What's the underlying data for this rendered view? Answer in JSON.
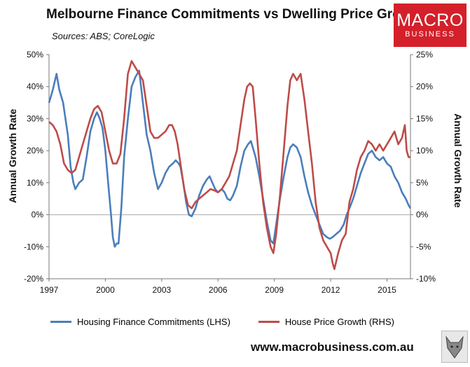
{
  "header": {
    "title": "Melbourne Finance Commitments vs Dwelling Price Growth",
    "sources": "Sources: ABS; CoreLogic"
  },
  "logo": {
    "line1": "MACRO",
    "line2": "BUSINESS"
  },
  "footer": {
    "website": "www.macrobusiness.com.au"
  },
  "colors": {
    "blue": "#4a7ebb",
    "red": "#be4b48",
    "logo_bg": "#d4202a"
  },
  "chart_data": {
    "type": "line",
    "title": "Melbourne Finance Commitments vs Dwelling Price Growth",
    "ylabel_left": "Annual Growth Rate",
    "ylabel_right": "Annual Growth Rate",
    "x_ticks": [
      "1997",
      "2000",
      "2003",
      "2006",
      "2009",
      "2012",
      "2015"
    ],
    "xlim": [
      1997,
      2016.25
    ],
    "ylim_left": [
      -20,
      50
    ],
    "ylim_right": [
      -10,
      25
    ],
    "y_ticks_left": [
      "-20%",
      "-10%",
      "0%",
      "10%",
      "20%",
      "30%",
      "40%",
      "50%"
    ],
    "y_ticks_right": [
      "-10%",
      "-5%",
      "0%",
      "5%",
      "10%",
      "15%",
      "20%",
      "25%"
    ],
    "series": [
      {
        "name": "Housing Finance Commitments (LHS)",
        "axis": "left",
        "points": [
          [
            1997.0,
            35
          ],
          [
            1997.2,
            39
          ],
          [
            1997.4,
            44
          ],
          [
            1997.55,
            39
          ],
          [
            1997.75,
            35
          ],
          [
            1998.0,
            25
          ],
          [
            1998.15,
            15
          ],
          [
            1998.3,
            10
          ],
          [
            1998.4,
            8
          ],
          [
            1998.6,
            10
          ],
          [
            1998.8,
            11
          ],
          [
            1999.0,
            18
          ],
          [
            1999.2,
            26
          ],
          [
            1999.4,
            30
          ],
          [
            1999.55,
            32
          ],
          [
            1999.7,
            30
          ],
          [
            1999.85,
            27
          ],
          [
            2000.0,
            20
          ],
          [
            2000.15,
            10
          ],
          [
            2000.3,
            0
          ],
          [
            2000.4,
            -7
          ],
          [
            2000.5,
            -10
          ],
          [
            2000.6,
            -9
          ],
          [
            2000.7,
            -9
          ],
          [
            2000.85,
            2
          ],
          [
            2001.0,
            18
          ],
          [
            2001.2,
            30
          ],
          [
            2001.4,
            40
          ],
          [
            2001.6,
            43
          ],
          [
            2001.8,
            45
          ],
          [
            2002.0,
            35
          ],
          [
            2002.2,
            25
          ],
          [
            2002.4,
            20
          ],
          [
            2002.6,
            13
          ],
          [
            2002.8,
            8
          ],
          [
            2003.0,
            10
          ],
          [
            2003.2,
            13
          ],
          [
            2003.4,
            15
          ],
          [
            2003.6,
            16
          ],
          [
            2003.75,
            17
          ],
          [
            2003.9,
            16
          ],
          [
            2004.0,
            15
          ],
          [
            2004.15,
            10
          ],
          [
            2004.3,
            4
          ],
          [
            2004.45,
            0
          ],
          [
            2004.6,
            -0.5
          ],
          [
            2004.8,
            2
          ],
          [
            2005.0,
            6
          ],
          [
            2005.2,
            9
          ],
          [
            2005.4,
            11
          ],
          [
            2005.55,
            12
          ],
          [
            2005.7,
            10
          ],
          [
            2005.85,
            8
          ],
          [
            2006.0,
            7
          ],
          [
            2006.2,
            8
          ],
          [
            2006.35,
            7
          ],
          [
            2006.5,
            5
          ],
          [
            2006.65,
            4.5
          ],
          [
            2006.8,
            6
          ],
          [
            2007.0,
            9
          ],
          [
            2007.2,
            15
          ],
          [
            2007.4,
            20
          ],
          [
            2007.6,
            22
          ],
          [
            2007.75,
            23
          ],
          [
            2007.9,
            20
          ],
          [
            2008.0,
            18
          ],
          [
            2008.2,
            12
          ],
          [
            2008.4,
            5
          ],
          [
            2008.6,
            -2
          ],
          [
            2008.8,
            -8
          ],
          [
            2008.95,
            -9
          ],
          [
            2009.1,
            -3
          ],
          [
            2009.3,
            5
          ],
          [
            2009.5,
            12
          ],
          [
            2009.7,
            18
          ],
          [
            2009.85,
            21
          ],
          [
            2010.0,
            22
          ],
          [
            2010.2,
            21
          ],
          [
            2010.4,
            18
          ],
          [
            2010.6,
            12
          ],
          [
            2010.8,
            7
          ],
          [
            2011.0,
            3
          ],
          [
            2011.2,
            0
          ],
          [
            2011.4,
            -3
          ],
          [
            2011.6,
            -6
          ],
          [
            2011.8,
            -7
          ],
          [
            2011.95,
            -7.5
          ],
          [
            2012.1,
            -7
          ],
          [
            2012.3,
            -6
          ],
          [
            2012.5,
            -5
          ],
          [
            2012.7,
            -3
          ],
          [
            2012.85,
            0
          ],
          [
            2013.0,
            2
          ],
          [
            2013.2,
            5
          ],
          [
            2013.4,
            9
          ],
          [
            2013.6,
            13
          ],
          [
            2013.8,
            16
          ],
          [
            2014.0,
            19
          ],
          [
            2014.2,
            20
          ],
          [
            2014.4,
            18
          ],
          [
            2014.6,
            17
          ],
          [
            2014.8,
            18
          ],
          [
            2015.0,
            16
          ],
          [
            2015.2,
            15
          ],
          [
            2015.4,
            12
          ],
          [
            2015.6,
            10
          ],
          [
            2015.8,
            7
          ],
          [
            2016.0,
            5
          ],
          [
            2016.15,
            3
          ],
          [
            2016.25,
            2
          ]
        ]
      },
      {
        "name": "House Price Growth (RHS)",
        "axis": "right",
        "points": [
          [
            1997.0,
            14.5
          ],
          [
            1997.2,
            14
          ],
          [
            1997.4,
            13
          ],
          [
            1997.6,
            11
          ],
          [
            1997.8,
            8
          ],
          [
            1998.0,
            7
          ],
          [
            1998.2,
            6.5
          ],
          [
            1998.4,
            7
          ],
          [
            1998.6,
            9
          ],
          [
            1998.8,
            11
          ],
          [
            1999.0,
            13
          ],
          [
            1999.2,
            15
          ],
          [
            1999.4,
            16.5
          ],
          [
            1999.6,
            17
          ],
          [
            1999.8,
            16
          ],
          [
            2000.0,
            13
          ],
          [
            2000.2,
            10
          ],
          [
            2000.4,
            8
          ],
          [
            2000.6,
            8
          ],
          [
            2000.8,
            9.5
          ],
          [
            2001.0,
            15
          ],
          [
            2001.2,
            22
          ],
          [
            2001.4,
            24
          ],
          [
            2001.6,
            23
          ],
          [
            2001.8,
            22
          ],
          [
            2002.0,
            21
          ],
          [
            2002.2,
            17
          ],
          [
            2002.4,
            13
          ],
          [
            2002.6,
            12
          ],
          [
            2002.8,
            12
          ],
          [
            2003.0,
            12.5
          ],
          [
            2003.2,
            13
          ],
          [
            2003.4,
            14
          ],
          [
            2003.55,
            14
          ],
          [
            2003.7,
            13
          ],
          [
            2003.85,
            11
          ],
          [
            2004.0,
            8
          ],
          [
            2004.2,
            4
          ],
          [
            2004.4,
            1.5
          ],
          [
            2004.6,
            1
          ],
          [
            2004.8,
            2
          ],
          [
            2005.0,
            2.5
          ],
          [
            2005.2,
            3
          ],
          [
            2005.4,
            3.5
          ],
          [
            2005.6,
            4
          ],
          [
            2005.8,
            3.8
          ],
          [
            2006.0,
            3.5
          ],
          [
            2006.2,
            4
          ],
          [
            2006.4,
            5
          ],
          [
            2006.6,
            6
          ],
          [
            2006.8,
            8
          ],
          [
            2007.0,
            10
          ],
          [
            2007.2,
            14
          ],
          [
            2007.4,
            18
          ],
          [
            2007.55,
            20
          ],
          [
            2007.7,
            20.5
          ],
          [
            2007.85,
            20
          ],
          [
            2008.0,
            15
          ],
          [
            2008.2,
            8
          ],
          [
            2008.4,
            2
          ],
          [
            2008.6,
            -2
          ],
          [
            2008.8,
            -5
          ],
          [
            2008.95,
            -6
          ],
          [
            2009.1,
            -3
          ],
          [
            2009.3,
            3
          ],
          [
            2009.5,
            10
          ],
          [
            2009.7,
            17
          ],
          [
            2009.85,
            21
          ],
          [
            2010.0,
            22
          ],
          [
            2010.2,
            21
          ],
          [
            2010.4,
            22
          ],
          [
            2010.6,
            18
          ],
          [
            2010.8,
            13
          ],
          [
            2011.0,
            8
          ],
          [
            2011.2,
            2
          ],
          [
            2011.4,
            -2
          ],
          [
            2011.6,
            -4
          ],
          [
            2011.8,
            -5
          ],
          [
            2012.0,
            -6
          ],
          [
            2012.1,
            -7.5
          ],
          [
            2012.2,
            -8.5
          ],
          [
            2012.4,
            -6
          ],
          [
            2012.6,
            -4
          ],
          [
            2012.8,
            -3
          ],
          [
            2013.0,
            2
          ],
          [
            2013.2,
            4
          ],
          [
            2013.4,
            7
          ],
          [
            2013.6,
            9
          ],
          [
            2013.8,
            10
          ],
          [
            2014.0,
            11.5
          ],
          [
            2014.2,
            11
          ],
          [
            2014.4,
            10
          ],
          [
            2014.6,
            11
          ],
          [
            2014.8,
            10
          ],
          [
            2015.0,
            11
          ],
          [
            2015.2,
            12
          ],
          [
            2015.4,
            13
          ],
          [
            2015.6,
            11
          ],
          [
            2015.8,
            12
          ],
          [
            2015.95,
            14
          ],
          [
            2016.05,
            10
          ],
          [
            2016.15,
            9
          ],
          [
            2016.25,
            9
          ]
        ]
      }
    ]
  }
}
